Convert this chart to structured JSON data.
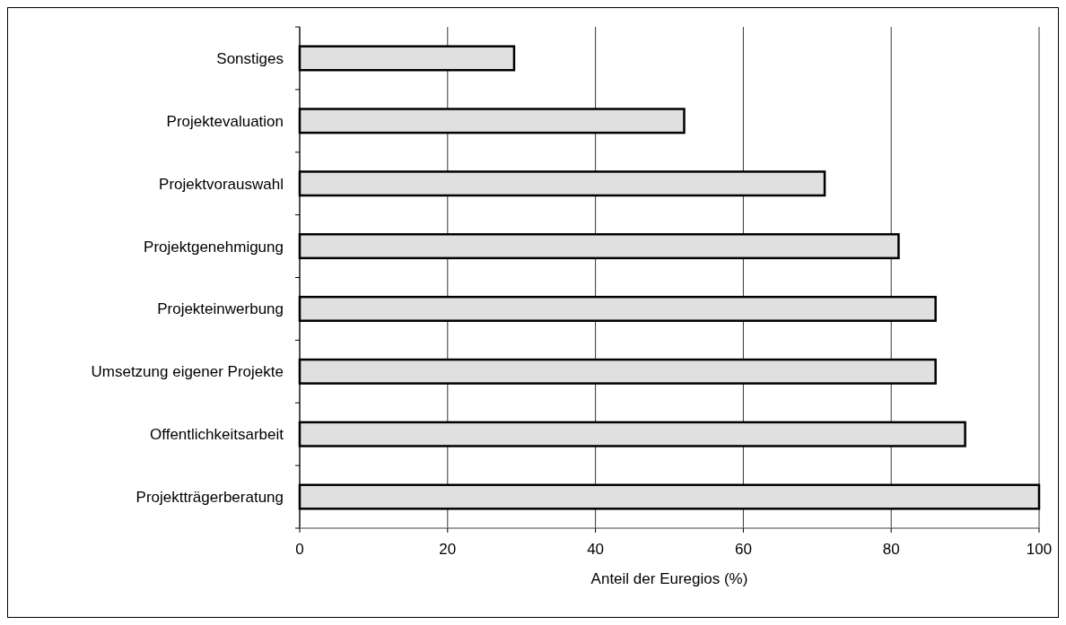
{
  "chart_data": {
    "type": "bar",
    "orientation": "horizontal",
    "xlabel": "Anteil der Euregios (%)",
    "categories": [
      "Sonstiges",
      "Projektevaluation",
      "Projektvorauswahl",
      "Projektgenehmigung",
      "Projekteinwerbung",
      "Umsetzung eigener Projekte",
      "Offentlichkeitsarbeit",
      "Projektträgerberatung"
    ],
    "values": [
      29,
      52,
      71,
      81,
      86,
      86,
      90,
      100
    ],
    "color": "#e0e0e0",
    "xlim": [
      0,
      100
    ],
    "xticks": [
      0,
      20,
      40,
      60,
      80,
      100
    ],
    "grid": "x"
  }
}
